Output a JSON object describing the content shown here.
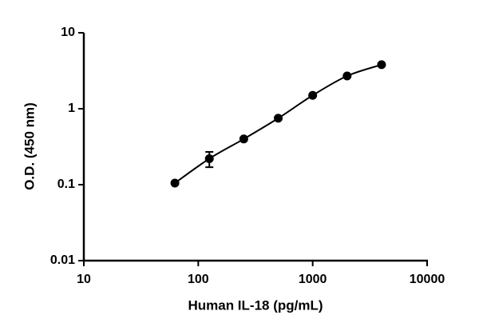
{
  "chart_data": {
    "type": "scatter",
    "x_label": "Human IL-18 (pg/mL)",
    "y_label": "O.D. (450 nm)",
    "x": [
      62.5,
      125,
      250,
      500,
      1000,
      2000,
      4000
    ],
    "series": [
      {
        "color": "#000000",
        "values": [
          0.105,
          0.22,
          0.4,
          0.75,
          1.5,
          2.7,
          3.8
        ],
        "errors": [
          0.004,
          0.05,
          0.015,
          0.03,
          0.05,
          0.08,
          0.1
        ]
      }
    ],
    "xscale": "log",
    "yscale": "log",
    "xlim": [
      10,
      10000
    ],
    "ylim": [
      0.01,
      10
    ],
    "xticks": [
      10,
      100,
      1000,
      10000
    ],
    "yticks": [
      0.01,
      0.1,
      1,
      10
    ],
    "fit_line": true,
    "grid": false
  }
}
